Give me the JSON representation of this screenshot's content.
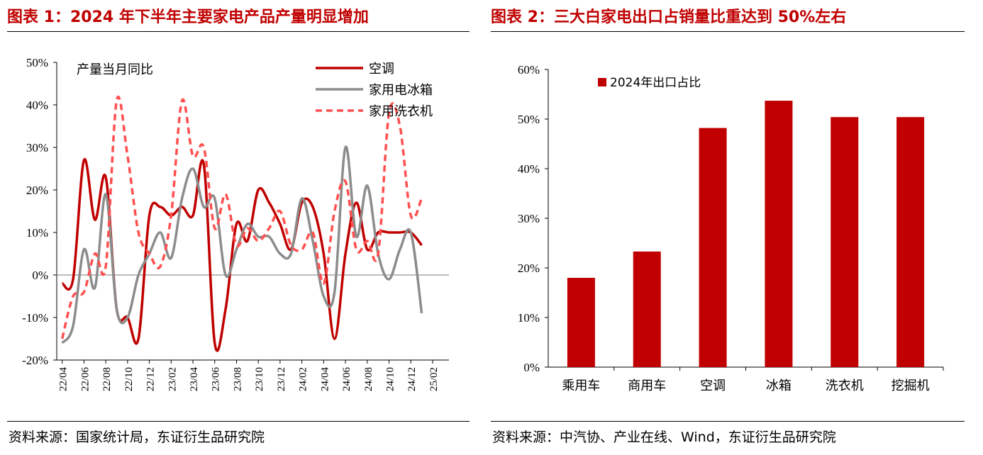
{
  "figure1": {
    "title": "图表 1：2024 年下半年主要家电产品产量明显增加",
    "source": "资料来源：国家统计局，东证衍生品研究院",
    "chart_data": {
      "type": "line",
      "annotation": "产量当月同比",
      "x": [
        "22/04",
        "22/05",
        "22/06",
        "22/07",
        "22/08",
        "22/09",
        "22/10",
        "22/11",
        "22/12",
        "23/01",
        "23/02",
        "23/03",
        "23/04",
        "23/05",
        "23/06",
        "23/07",
        "23/08",
        "23/09",
        "23/10",
        "23/11",
        "23/12",
        "24/01",
        "24/02",
        "24/03",
        "24/04",
        "24/05",
        "24/06",
        "24/07",
        "24/08",
        "24/09",
        "24/10",
        "24/11",
        "24/12",
        "25/01",
        "25/02",
        "25/03"
      ],
      "x_tick_labels": [
        "22/04",
        "22/06",
        "22/08",
        "22/10",
        "22/12",
        "23/02",
        "23/04",
        "23/06",
        "23/08",
        "23/10",
        "23/12",
        "24/02",
        "24/04",
        "24/06",
        "24/08",
        "24/10",
        "24/12",
        "25/02"
      ],
      "ylim": [
        -20,
        50
      ],
      "y_ticks": [
        "-20%",
        "-10%",
        "0%",
        "10%",
        "20%",
        "30%",
        "40%",
        "50%"
      ],
      "legend_position": "top-right",
      "series": [
        {
          "name": "空调",
          "color": "#c00000",
          "style": "solid",
          "values": [
            -2,
            -1,
            27,
            13,
            23,
            -8,
            -10,
            -15,
            14,
            16,
            14,
            16,
            14,
            26,
            -16,
            -8,
            12,
            8,
            20,
            17,
            12,
            6,
            17,
            16,
            5,
            -15,
            5,
            17,
            6,
            10,
            10,
            10,
            10,
            7,
            null,
            null
          ]
        },
        {
          "name": "家用电冰箱",
          "color": "#8c8c8c",
          "style": "solid",
          "values": [
            -16,
            -12,
            6,
            -3,
            19,
            -8,
            -10,
            0,
            5,
            10,
            4,
            18,
            25,
            16,
            18,
            0,
            6,
            12,
            9,
            9,
            5,
            5,
            18,
            8,
            -5,
            -4,
            30,
            9,
            21,
            5,
            -1,
            6,
            10,
            -9,
            null,
            null
          ]
        },
        {
          "name": "家用洗衣机",
          "color": "#ff5050",
          "style": "dashed",
          "values": [
            -15,
            -5,
            -4,
            5,
            2,
            41,
            28,
            10,
            5,
            2,
            14,
            41,
            28,
            30,
            11,
            19,
            7,
            11,
            8,
            11,
            15,
            7,
            6,
            10,
            -2,
            15,
            22,
            6,
            8,
            5,
            38,
            35,
            14,
            18,
            null,
            null
          ]
        }
      ]
    }
  },
  "figure2": {
    "title": "图表 2：三大白家电出口占销量比重达到 50%左右",
    "source": "资料来源：中汽协、产业在线、Wind，东证衍生品研究院",
    "chart_data": {
      "type": "bar",
      "categories": [
        "乘用车",
        "商用车",
        "空调",
        "冰箱",
        "洗衣机",
        "挖掘机"
      ],
      "series": [
        {
          "name": "2024年出口占比",
          "color": "#c00000",
          "values": [
            18,
            23.3,
            48.2,
            53.7,
            50.4,
            50.4
          ]
        }
      ],
      "ylim": [
        0,
        60
      ],
      "y_ticks": [
        "0%",
        "10%",
        "20%",
        "30%",
        "40%",
        "50%",
        "60%"
      ],
      "legend_position": "top-left"
    }
  }
}
